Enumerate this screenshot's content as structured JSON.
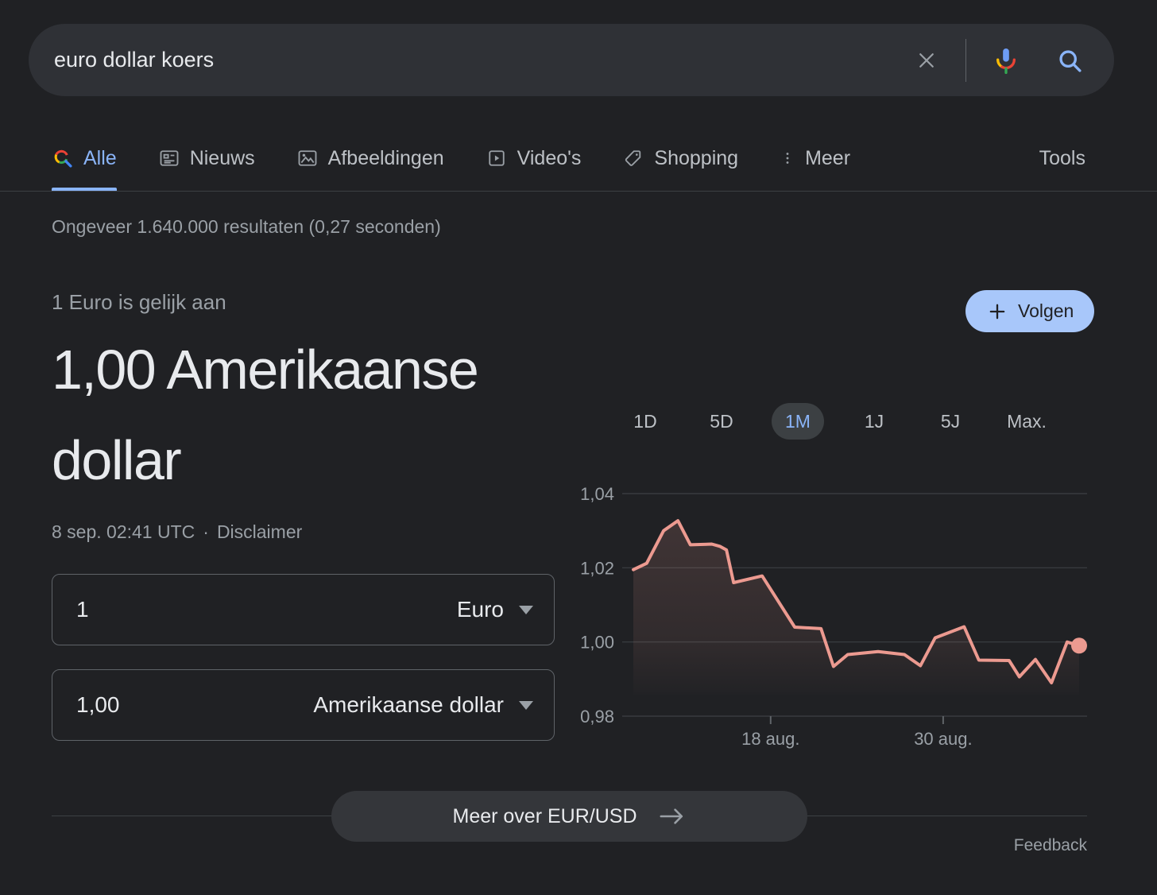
{
  "colors": {
    "background": "#202124",
    "accent_blue": "#8ab4f8",
    "follow_button_bg": "#a8c7fa",
    "chart_line": "#ec9a90",
    "muted_text": "#9aa0a6",
    "divider": "#3c4043"
  },
  "search_bar": {
    "query": "euro dollar koers",
    "clear_icon": "clear-x",
    "mic_icon": "google-mic",
    "search_icon": "magnifier"
  },
  "tabs": {
    "items": [
      {
        "label": "Alle",
        "icon": "google-colored-magnifier",
        "active": true
      },
      {
        "label": "Nieuws",
        "icon": "newspaper",
        "active": false
      },
      {
        "label": "Afbeeldingen",
        "icon": "image",
        "active": false
      },
      {
        "label": "Video's",
        "icon": "play-box",
        "active": false
      },
      {
        "label": "Shopping",
        "icon": "price-tag",
        "active": false
      },
      {
        "label": "Meer",
        "icon": "three-dots-vertical",
        "active": false
      }
    ],
    "tools_label": "Tools"
  },
  "stats": {
    "text": "Ongeveer 1.640.000 resultaten (0,27 seconden)"
  },
  "converter": {
    "subtitle": "1 Euro is gelijk aan",
    "result": "1,00 Amerikaanse dollar",
    "follow_label": "Volgen",
    "timestamp": "8 sep. 02:41 UTC",
    "separator": "·",
    "disclaimer_label": "Disclaimer",
    "from": {
      "amount": "1",
      "currency": "Euro"
    },
    "to": {
      "amount": "1,00",
      "currency": "Amerikaanse dollar"
    },
    "more_button_label": "Meer over EUR/USD",
    "feedback_label": "Feedback"
  },
  "ranges": {
    "options": [
      "1D",
      "5D",
      "1M",
      "1J",
      "5J",
      "Max."
    ],
    "selected": "1M"
  },
  "chart_data": {
    "type": "line",
    "series": [
      {
        "name": "EUR/USD",
        "points": [
          [
            0.0,
            1.0195
          ],
          [
            0.03,
            1.0212
          ],
          [
            0.068,
            1.03
          ],
          [
            0.1,
            1.0327
          ],
          [
            0.128,
            1.0262
          ],
          [
            0.176,
            1.0264
          ],
          [
            0.194,
            1.0258
          ],
          [
            0.209,
            1.0248
          ],
          [
            0.225,
            1.016
          ],
          [
            0.289,
            1.0178
          ],
          [
            0.362,
            1.004
          ],
          [
            0.421,
            1.0036
          ],
          [
            0.449,
            0.9934
          ],
          [
            0.481,
            0.9966
          ],
          [
            0.549,
            0.9974
          ],
          [
            0.608,
            0.9966
          ],
          [
            0.644,
            0.9936
          ],
          [
            0.677,
            1.0011
          ],
          [
            0.742,
            1.0041
          ],
          [
            0.775,
            0.9951
          ],
          [
            0.843,
            0.995
          ],
          [
            0.866,
            0.9906
          ],
          [
            0.902,
            0.9953
          ],
          [
            0.938,
            0.989
          ],
          [
            0.973,
            1.0
          ],
          [
            1.0,
            0.999
          ]
        ]
      }
    ],
    "ylim": [
      0.98,
      1.04
    ],
    "yticks": [
      {
        "value": 1.04,
        "label": "1,04"
      },
      {
        "value": 1.02,
        "label": "1,02"
      },
      {
        "value": 1.0,
        "label": "1,00"
      },
      {
        "value": 0.98,
        "label": "0,98"
      }
    ],
    "xticks": [
      {
        "frac": 0.308,
        "label": "18 aug."
      },
      {
        "frac": 0.695,
        "label": "30 aug."
      }
    ],
    "grid": true,
    "legend": false,
    "line_color": "#ec9a90",
    "end_dot": true
  }
}
